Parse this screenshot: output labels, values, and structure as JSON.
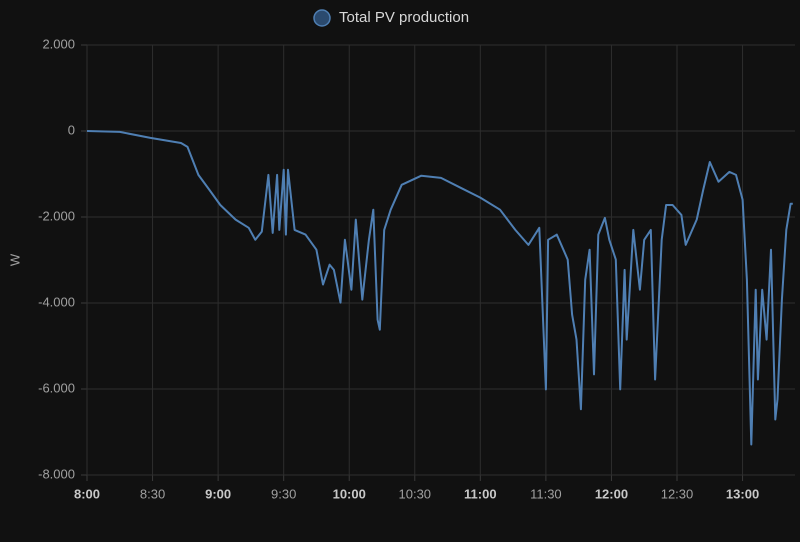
{
  "chart_data": {
    "type": "line",
    "y_label": "W",
    "series": [
      {
        "name": "Total PV production",
        "color": "#4f7fb3",
        "x": [
          "8:00",
          "8:15",
          "8:29",
          "8:43",
          "8:46",
          "8:51",
          "8:56",
          "9:01",
          "9:08",
          "9:14",
          "9:17",
          "9:20",
          "9:23",
          "9:25",
          "9:27",
          "9:28",
          "9:30",
          "9:31",
          "9:32",
          "9:35",
          "9:40",
          "9:45",
          "9:48",
          "9:51",
          "9:53",
          "9:56",
          "9:58",
          "10:01",
          "10:03",
          "10:06",
          "10:09",
          "10:11",
          "10:13",
          "10:14",
          "10:16",
          "10:19",
          "10:24",
          "10:33",
          "10:42",
          "10:51",
          "11:00",
          "11:09",
          "11:16",
          "11:22",
          "11:27",
          "11:30",
          "11:31",
          "11:35",
          "11:38",
          "11:40",
          "11:42",
          "11:44",
          "11:46",
          "11:48",
          "11:50",
          "11:52",
          "11:54",
          "11:57",
          "11:59",
          "12:02",
          "12:04",
          "12:06",
          "12:07",
          "12:10",
          "12:13",
          "12:15",
          "12:18",
          "12:20",
          "12:23",
          "12:25",
          "12:28",
          "12:32",
          "12:34",
          "12:39",
          "12:42",
          "12:45",
          "12:49",
          "12:54",
          "12:57",
          "13:00",
          "13:02",
          "13:04",
          "13:06",
          "13:07",
          "13:09",
          "13:11",
          "13:13",
          "13:15",
          "13:16",
          "13:18",
          "13:20",
          "13:22",
          "13:23"
        ],
        "values": [
          0,
          -20,
          -160,
          -280,
          -370,
          -1020,
          -1370,
          -1720,
          -2060,
          -2250,
          -2530,
          -2340,
          -1020,
          -2370,
          -1020,
          -2300,
          -900,
          -2410,
          -900,
          -2300,
          -2410,
          -2760,
          -3570,
          -3110,
          -3230,
          -3990,
          -2530,
          -3690,
          -2060,
          -3920,
          -2530,
          -1830,
          -4390,
          -4620,
          -2300,
          -1830,
          -1250,
          -1040,
          -1090,
          -1320,
          -1550,
          -1830,
          -2300,
          -2650,
          -2250,
          -6010,
          -2530,
          -2410,
          -2760,
          -2990,
          -4270,
          -4850,
          -6470,
          -3460,
          -2760,
          -5660,
          -2410,
          -2020,
          -2530,
          -2990,
          -6010,
          -3230,
          -4850,
          -2300,
          -3690,
          -2530,
          -2300,
          -5780,
          -2530,
          -1720,
          -1720,
          -1950,
          -2650,
          -2060,
          -1370,
          -720,
          -1180,
          -950,
          -1020,
          -1600,
          -3460,
          -7290,
          -3690,
          -5780,
          -3690,
          -4850,
          -2760,
          -6710,
          -6240,
          -3920,
          -2300,
          -1690,
          -1690
        ]
      }
    ],
    "xlim": [
      "8:00",
      "13:24"
    ],
    "xticks": [
      "8:00",
      "8:30",
      "9:00",
      "9:30",
      "10:00",
      "10:30",
      "11:00",
      "11:30",
      "12:00",
      "12:30",
      "13:00"
    ],
    "ylim": [
      -8000,
      2000
    ],
    "yticks": [
      {
        "value": 2000,
        "label": "2.000"
      },
      0,
      {
        "value": -2000,
        "label": "-2.000"
      },
      {
        "value": -4000,
        "label": "-4.000"
      },
      {
        "value": -6000,
        "label": "-6.000"
      },
      {
        "value": -8000,
        "label": "-8.000"
      }
    ],
    "grid": true,
    "legend": "top"
  }
}
